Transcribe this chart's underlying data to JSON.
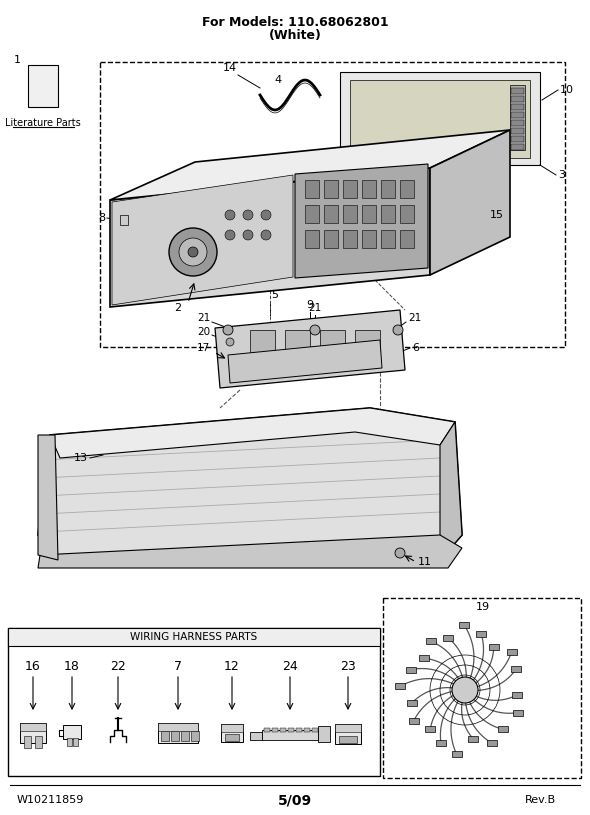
{
  "title_line1": "For Models: 110.68062801",
  "title_line2": "(White)",
  "footer_left": "W10211859",
  "footer_center": "5/09",
  "footer_right": "Rev.B",
  "bg_color": "#ffffff",
  "line_color": "#000000",
  "wiring_harness_label": "WIRING HARNESS PARTS",
  "wiring_harness_parts": [
    16,
    18,
    22,
    7,
    12,
    24,
    23
  ],
  "literature_label": "Literature Parts"
}
